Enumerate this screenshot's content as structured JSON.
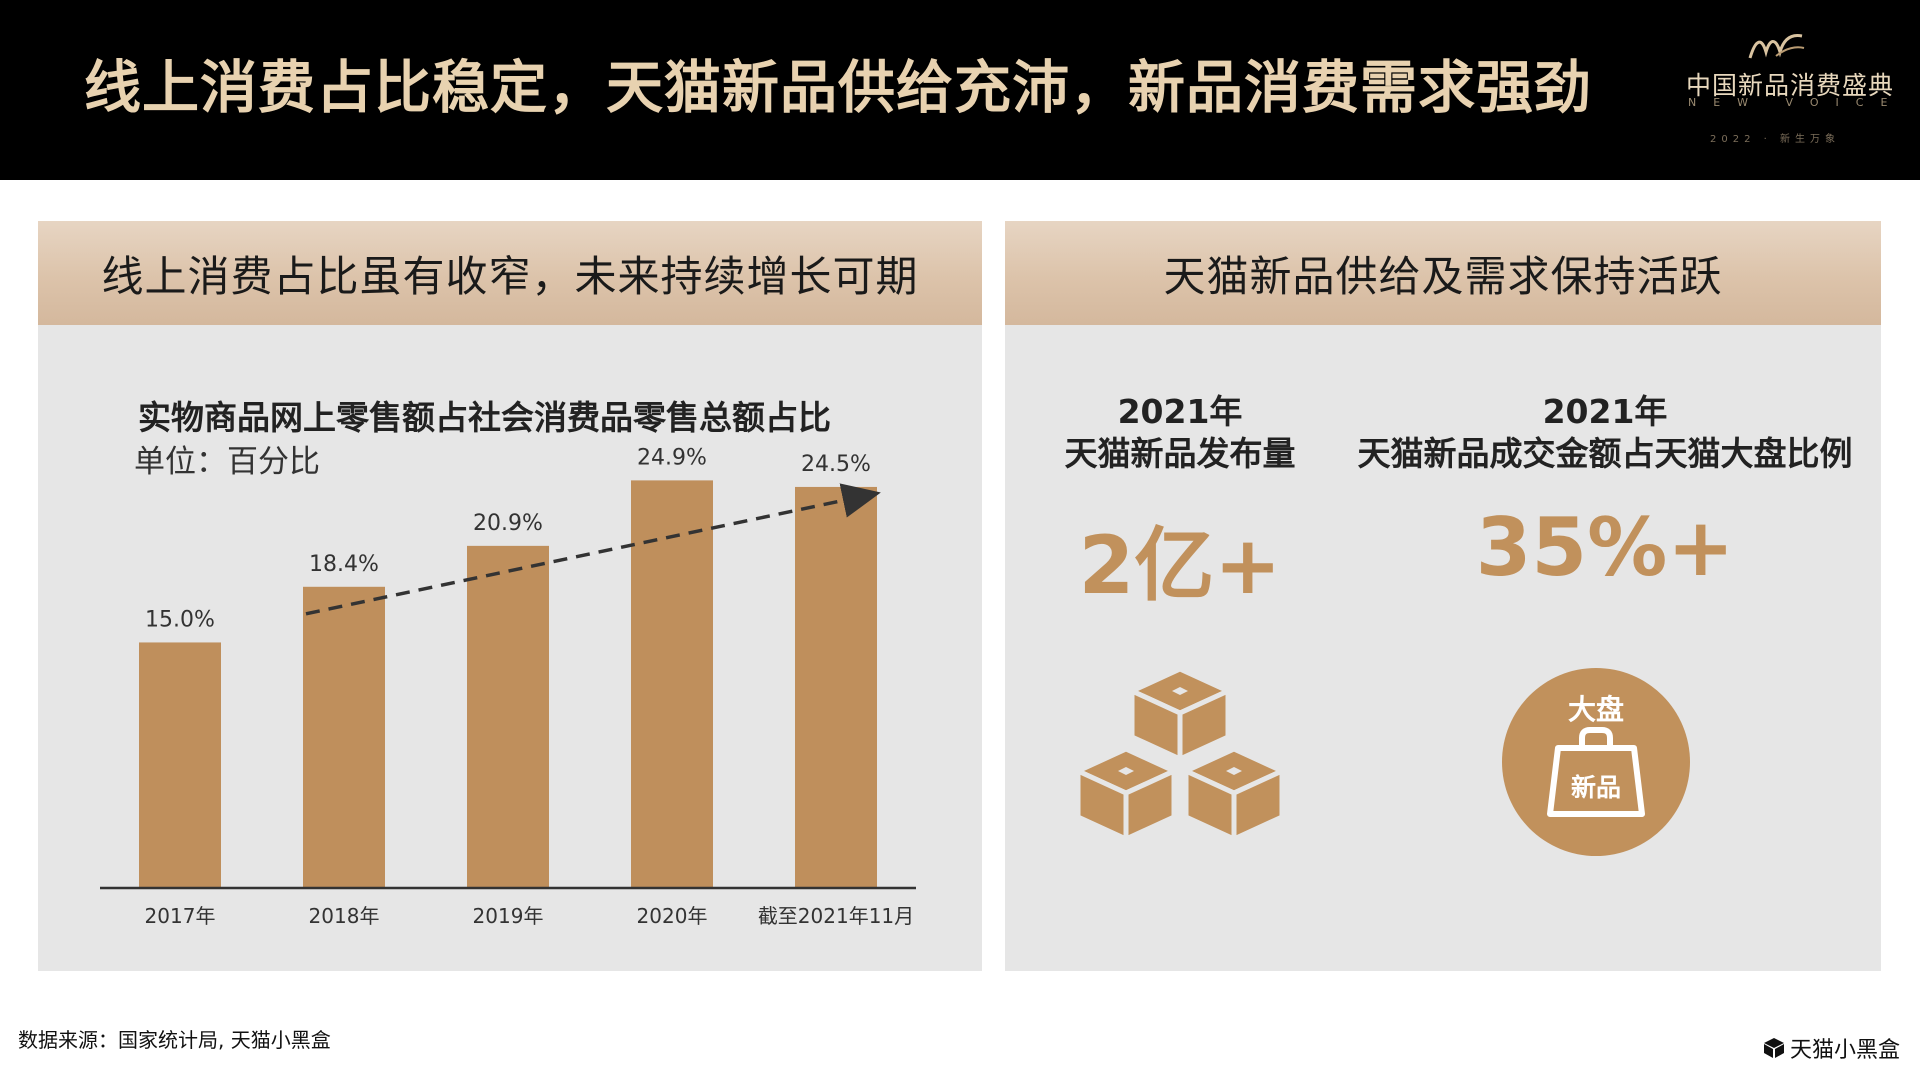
{
  "header": {
    "title": "线上消费占比稳定，天猫新品供给充沛，新品消费需求强劲",
    "brand": {
      "cn": "中国新品消费盛典",
      "en": "NEW VOICE",
      "year": "2022 · 新生万象"
    }
  },
  "left_panel": {
    "header": "线上消费占比虽有收窄，未来持续增长可期",
    "chart_title": "实物商品网上零售额占社会消费品零售总额占比",
    "chart_unit": "单位：百分比"
  },
  "right_panel": {
    "header": "天猫新品供给及需求保持活跃",
    "stat1": {
      "year": "2021年",
      "label": "天猫新品发布量",
      "value": "2亿+"
    },
    "stat2": {
      "year": "2021年",
      "label": "天猫新品成交金额占天猫大盘比例",
      "value": "35%+"
    },
    "icon_badge": {
      "top": "大盘",
      "bottom": "新品"
    }
  },
  "chart_data": {
    "type": "bar",
    "categories": [
      "2017年",
      "2018年",
      "2019年",
      "2020年",
      "截至2021年11月"
    ],
    "values": [
      15.0,
      18.4,
      20.9,
      24.9,
      24.5
    ],
    "value_labels": [
      "15.0%",
      "18.4%",
      "20.9%",
      "24.9%",
      "24.5%"
    ],
    "title": "实物商品网上零售额占社会消费品零售总额占比",
    "unit": "单位：百分比",
    "trend_arrow": {
      "from_category": "2018年",
      "to_category": "截至2021年11月"
    },
    "colors": {
      "bar": "#bf8f5c",
      "label": "#333333",
      "axis": "#333333"
    }
  },
  "footer": {
    "source": "数据来源：国家统计局, 天猫小黑盒",
    "logo_text": "天猫小黑盒"
  },
  "colors": {
    "accent": "#c1915c",
    "title_text": "#e8d2b0",
    "panel_bg": "#e6e6e6"
  }
}
